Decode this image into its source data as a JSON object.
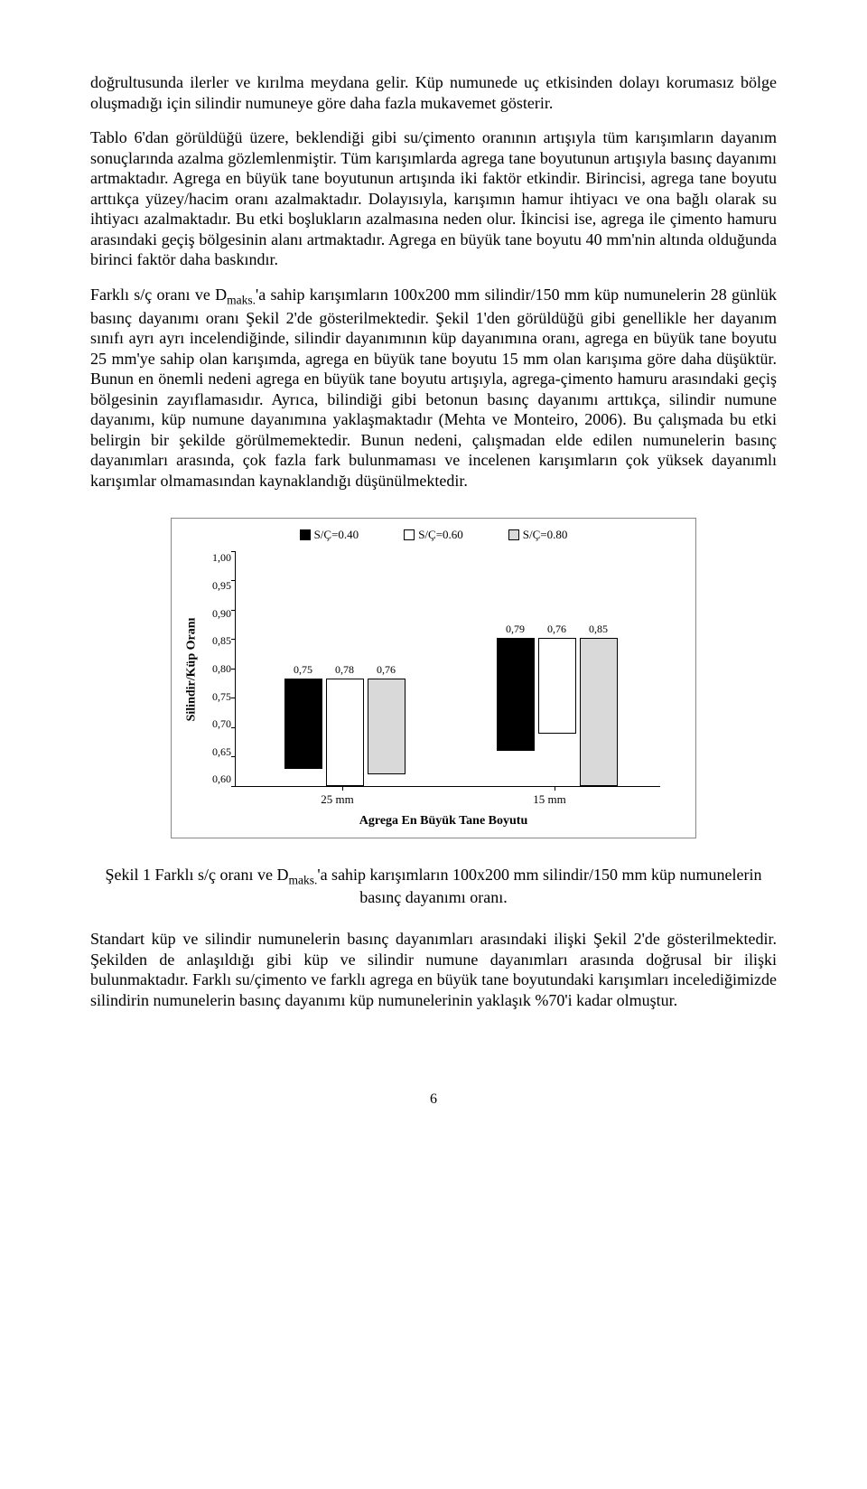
{
  "paragraphs": {
    "p1": "doğrultusunda ilerler ve kırılma meydana gelir. Küp numunede uç etkisinden dolayı korumasız bölge oluşmadığı için silindir numuneye göre daha fazla mukavemet gösterir.",
    "p2": "Tablo 6'dan görüldüğü üzere, beklendiği gibi su/çimento oranının artışıyla tüm karışımların dayanım sonuçlarında azalma gözlemlenmiştir. Tüm karışımlarda agrega tane boyutunun artışıyla basınç dayanımı artmaktadır. Agrega en büyük tane boyutunun artışında iki faktör etkindir. Birincisi, agrega tane boyutu arttıkça yüzey/hacim oranı azalmaktadır. Dolayısıyla, karışımın hamur ihtiyacı ve ona bağlı olarak su ihtiyacı azalmaktadır. Bu etki boşlukların azalmasına neden olur. İkincisi ise, agrega ile çimento hamuru arasındaki geçiş bölgesinin alanı artmaktadır. Agrega en büyük tane boyutu 40 mm'nin altında olduğunda birinci faktör daha baskındır.",
    "p3_a": "Farklı s/ç oranı ve D",
    "p3_sub": "maks.",
    "p3_b": "'a sahip karışımların 100x200 mm silindir/150 mm küp numunelerin 28 günlük basınç dayanımı oranı Şekil 2'de gösterilmektedir. Şekil 1'den görüldüğü gibi genellikle her dayanım sınıfı ayrı ayrı incelendiğinde, silindir dayanımının küp dayanımına oranı, agrega en büyük tane boyutu 25 mm'ye sahip olan karışımda, agrega en büyük tane boyutu 15 mm olan karışıma göre daha düşüktür. Bunun en önemli nedeni agrega en büyük tane boyutu artışıyla, agrega-çimento hamuru arasındaki geçiş bölgesinin zayıflamasıdır. Ayrıca, bilindiği gibi betonun basınç dayanımı arttıkça, silindir numune dayanımı, küp numune dayanımına yaklaşmaktadır (Mehta ve Monteiro, 2006). Bu çalışmada bu etki belirgin bir şekilde görülmemektedir. Bunun nedeni, çalışmadan elde edilen numunelerin basınç dayanımları arasında, çok fazla fark bulunmaması ve incelenen karışımların çok yüksek dayanımlı karışımlar olmamasından kaynaklandığı düşünülmektedir.",
    "p4": "Standart küp ve silindir numunelerin basınç dayanımları arasındaki ilişki Şekil 2'de gösterilmektedir. Şekilden de anlaşıldığı gibi küp ve silindir numune dayanımları arasında doğrusal bir ilişki bulunmaktadır. Farklı su/çimento ve farklı agrega en büyük tane boyutundaki karışımları incelediğimizde silindirin numunelerin basınç dayanımı küp numunelerinin yaklaşık %70'i kadar olmuştur."
  },
  "chart": {
    "legend": {
      "a": "S/Ç=0.40",
      "b": "S/Ç=0.60",
      "c": "S/Ç=0.80"
    },
    "ylabel": "Silindir/Küp Oranı",
    "yticks": [
      "1,00",
      "0,95",
      "0,90",
      "0,85",
      "0,80",
      "0,75",
      "0,70",
      "0,65",
      "0,60"
    ],
    "ymin": 0.6,
    "ymax": 1.0,
    "series_colors": {
      "a": "#000000",
      "b": "#ffffff",
      "c": "#d9d9d9"
    },
    "groups": [
      {
        "xlabel": "25 mm",
        "bars": [
          {
            "value": 0.75,
            "label": "0,75",
            "fill": "#000000"
          },
          {
            "value": 0.78,
            "label": "0,78",
            "fill": "#ffffff"
          },
          {
            "value": 0.76,
            "label": "0,76",
            "fill": "#d9d9d9"
          }
        ]
      },
      {
        "xlabel": "15 mm",
        "bars": [
          {
            "value": 0.79,
            "label": "0,79",
            "fill": "#000000"
          },
          {
            "value": 0.76,
            "label": "0,76",
            "fill": "#ffffff"
          },
          {
            "value": 0.85,
            "label": "0,85",
            "fill": "#d9d9d9"
          }
        ]
      }
    ],
    "xaxis_title": "Agrega En Büyük Tane Boyutu"
  },
  "caption_a": "Şekil 1 Farklı s/ç oranı ve D",
  "caption_sub": "maks.",
  "caption_b": "'a sahip karışımların 100x200 mm silindir/150 mm küp numunelerin basınç dayanımı oranı.",
  "page_number": "6"
}
